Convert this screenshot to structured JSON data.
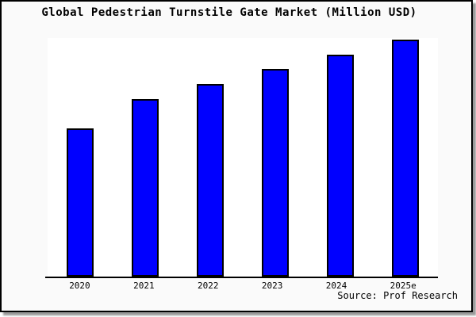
{
  "figure": {
    "title": "Global Pedestrian Turnstile Gate Market (Million USD)",
    "source": "Source: Prof Research"
  },
  "chart_data": {
    "type": "bar",
    "title": "Global Pedestrian Turnstile Gate Market (Million USD)",
    "categories": [
      "2020",
      "2021",
      "2022",
      "2023",
      "2024",
      "2025e"
    ],
    "values": [
      62.5,
      74.9,
      81.3,
      87.6,
      93.7,
      100
    ],
    "values_note": "relative index, 2025e = 100; y-axis has no tick labels in source image",
    "xlabel": "",
    "ylabel": "",
    "ylim": [
      0,
      100
    ],
    "grid": false,
    "legend": "none",
    "colors": {
      "bar_fill": "#0000ff",
      "bar_border": "#000000",
      "figure_background": "#fafafa",
      "plot_background": "#ffffff",
      "axis": "#000000",
      "text": "#000000"
    },
    "source": "Source: Prof Research"
  }
}
